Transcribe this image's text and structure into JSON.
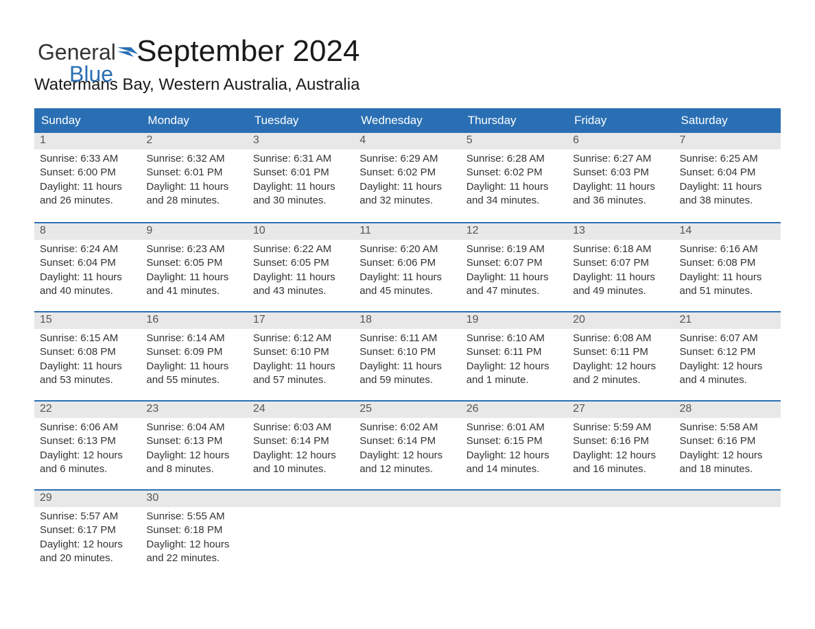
{
  "brand": {
    "part1": "General",
    "part2": "Blue",
    "color_text": "#333333",
    "color_accent": "#2a6fb4"
  },
  "title": "September 2024",
  "location": "Watermans Bay, Western Australia, Australia",
  "calendar": {
    "type": "table",
    "header_bg": "#2a6fb4",
    "header_fg": "#ffffff",
    "daynum_bg": "#e8e8e8",
    "daynum_fg": "#555555",
    "body_fg": "#333333",
    "week_border_color": "#2a6fb4",
    "day_headers": [
      "Sunday",
      "Monday",
      "Tuesday",
      "Wednesday",
      "Thursday",
      "Friday",
      "Saturday"
    ],
    "weeks": [
      [
        {
          "day": "1",
          "sunrise": "Sunrise: 6:33 AM",
          "sunset": "Sunset: 6:00 PM",
          "daylight1": "Daylight: 11 hours",
          "daylight2": "and 26 minutes."
        },
        {
          "day": "2",
          "sunrise": "Sunrise: 6:32 AM",
          "sunset": "Sunset: 6:01 PM",
          "daylight1": "Daylight: 11 hours",
          "daylight2": "and 28 minutes."
        },
        {
          "day": "3",
          "sunrise": "Sunrise: 6:31 AM",
          "sunset": "Sunset: 6:01 PM",
          "daylight1": "Daylight: 11 hours",
          "daylight2": "and 30 minutes."
        },
        {
          "day": "4",
          "sunrise": "Sunrise: 6:29 AM",
          "sunset": "Sunset: 6:02 PM",
          "daylight1": "Daylight: 11 hours",
          "daylight2": "and 32 minutes."
        },
        {
          "day": "5",
          "sunrise": "Sunrise: 6:28 AM",
          "sunset": "Sunset: 6:02 PM",
          "daylight1": "Daylight: 11 hours",
          "daylight2": "and 34 minutes."
        },
        {
          "day": "6",
          "sunrise": "Sunrise: 6:27 AM",
          "sunset": "Sunset: 6:03 PM",
          "daylight1": "Daylight: 11 hours",
          "daylight2": "and 36 minutes."
        },
        {
          "day": "7",
          "sunrise": "Sunrise: 6:25 AM",
          "sunset": "Sunset: 6:04 PM",
          "daylight1": "Daylight: 11 hours",
          "daylight2": "and 38 minutes."
        }
      ],
      [
        {
          "day": "8",
          "sunrise": "Sunrise: 6:24 AM",
          "sunset": "Sunset: 6:04 PM",
          "daylight1": "Daylight: 11 hours",
          "daylight2": "and 40 minutes."
        },
        {
          "day": "9",
          "sunrise": "Sunrise: 6:23 AM",
          "sunset": "Sunset: 6:05 PM",
          "daylight1": "Daylight: 11 hours",
          "daylight2": "and 41 minutes."
        },
        {
          "day": "10",
          "sunrise": "Sunrise: 6:22 AM",
          "sunset": "Sunset: 6:05 PM",
          "daylight1": "Daylight: 11 hours",
          "daylight2": "and 43 minutes."
        },
        {
          "day": "11",
          "sunrise": "Sunrise: 6:20 AM",
          "sunset": "Sunset: 6:06 PM",
          "daylight1": "Daylight: 11 hours",
          "daylight2": "and 45 minutes."
        },
        {
          "day": "12",
          "sunrise": "Sunrise: 6:19 AM",
          "sunset": "Sunset: 6:07 PM",
          "daylight1": "Daylight: 11 hours",
          "daylight2": "and 47 minutes."
        },
        {
          "day": "13",
          "sunrise": "Sunrise: 6:18 AM",
          "sunset": "Sunset: 6:07 PM",
          "daylight1": "Daylight: 11 hours",
          "daylight2": "and 49 minutes."
        },
        {
          "day": "14",
          "sunrise": "Sunrise: 6:16 AM",
          "sunset": "Sunset: 6:08 PM",
          "daylight1": "Daylight: 11 hours",
          "daylight2": "and 51 minutes."
        }
      ],
      [
        {
          "day": "15",
          "sunrise": "Sunrise: 6:15 AM",
          "sunset": "Sunset: 6:08 PM",
          "daylight1": "Daylight: 11 hours",
          "daylight2": "and 53 minutes."
        },
        {
          "day": "16",
          "sunrise": "Sunrise: 6:14 AM",
          "sunset": "Sunset: 6:09 PM",
          "daylight1": "Daylight: 11 hours",
          "daylight2": "and 55 minutes."
        },
        {
          "day": "17",
          "sunrise": "Sunrise: 6:12 AM",
          "sunset": "Sunset: 6:10 PM",
          "daylight1": "Daylight: 11 hours",
          "daylight2": "and 57 minutes."
        },
        {
          "day": "18",
          "sunrise": "Sunrise: 6:11 AM",
          "sunset": "Sunset: 6:10 PM",
          "daylight1": "Daylight: 11 hours",
          "daylight2": "and 59 minutes."
        },
        {
          "day": "19",
          "sunrise": "Sunrise: 6:10 AM",
          "sunset": "Sunset: 6:11 PM",
          "daylight1": "Daylight: 12 hours",
          "daylight2": "and 1 minute."
        },
        {
          "day": "20",
          "sunrise": "Sunrise: 6:08 AM",
          "sunset": "Sunset: 6:11 PM",
          "daylight1": "Daylight: 12 hours",
          "daylight2": "and 2 minutes."
        },
        {
          "day": "21",
          "sunrise": "Sunrise: 6:07 AM",
          "sunset": "Sunset: 6:12 PM",
          "daylight1": "Daylight: 12 hours",
          "daylight2": "and 4 minutes."
        }
      ],
      [
        {
          "day": "22",
          "sunrise": "Sunrise: 6:06 AM",
          "sunset": "Sunset: 6:13 PM",
          "daylight1": "Daylight: 12 hours",
          "daylight2": "and 6 minutes."
        },
        {
          "day": "23",
          "sunrise": "Sunrise: 6:04 AM",
          "sunset": "Sunset: 6:13 PM",
          "daylight1": "Daylight: 12 hours",
          "daylight2": "and 8 minutes."
        },
        {
          "day": "24",
          "sunrise": "Sunrise: 6:03 AM",
          "sunset": "Sunset: 6:14 PM",
          "daylight1": "Daylight: 12 hours",
          "daylight2": "and 10 minutes."
        },
        {
          "day": "25",
          "sunrise": "Sunrise: 6:02 AM",
          "sunset": "Sunset: 6:14 PM",
          "daylight1": "Daylight: 12 hours",
          "daylight2": "and 12 minutes."
        },
        {
          "day": "26",
          "sunrise": "Sunrise: 6:01 AM",
          "sunset": "Sunset: 6:15 PM",
          "daylight1": "Daylight: 12 hours",
          "daylight2": "and 14 minutes."
        },
        {
          "day": "27",
          "sunrise": "Sunrise: 5:59 AM",
          "sunset": "Sunset: 6:16 PM",
          "daylight1": "Daylight: 12 hours",
          "daylight2": "and 16 minutes."
        },
        {
          "day": "28",
          "sunrise": "Sunrise: 5:58 AM",
          "sunset": "Sunset: 6:16 PM",
          "daylight1": "Daylight: 12 hours",
          "daylight2": "and 18 minutes."
        }
      ],
      [
        {
          "day": "29",
          "sunrise": "Sunrise: 5:57 AM",
          "sunset": "Sunset: 6:17 PM",
          "daylight1": "Daylight: 12 hours",
          "daylight2": "and 20 minutes."
        },
        {
          "day": "30",
          "sunrise": "Sunrise: 5:55 AM",
          "sunset": "Sunset: 6:18 PM",
          "daylight1": "Daylight: 12 hours",
          "daylight2": "and 22 minutes."
        },
        {
          "empty": true
        },
        {
          "empty": true
        },
        {
          "empty": true
        },
        {
          "empty": true
        },
        {
          "empty": true
        }
      ]
    ]
  }
}
